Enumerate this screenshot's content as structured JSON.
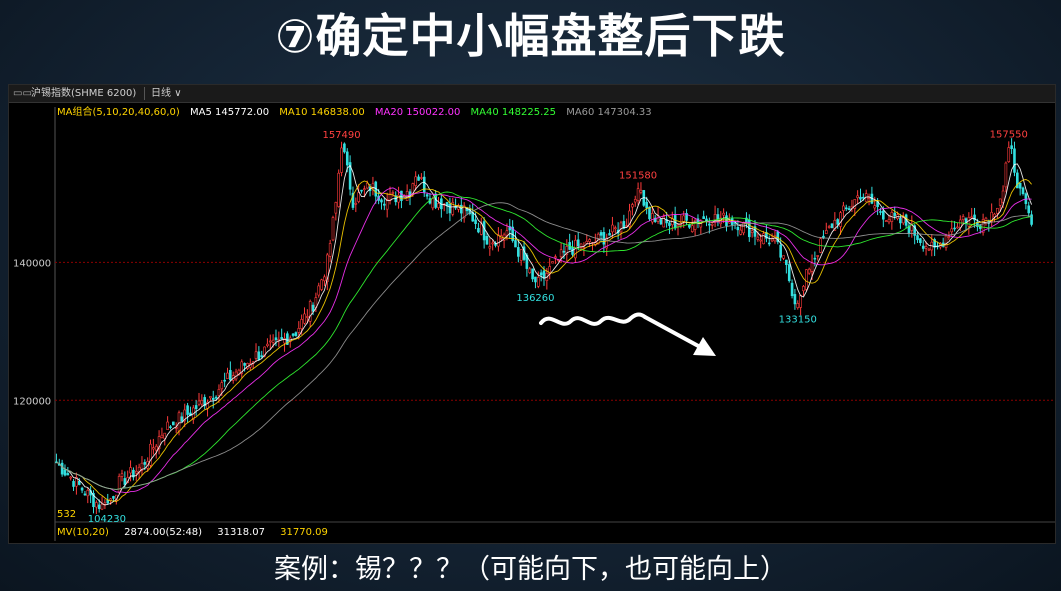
{
  "slide": {
    "title": "⑦确定中小幅盘整后下跌",
    "caption": "案例：锡？？？（可能向下，也可能向上）"
  },
  "window": {
    "icon": "window-icon",
    "symbol": "沪锡指数(SHME 6200)",
    "period": "日线",
    "period_arrow": "chevron-down-icon"
  },
  "ma_legend": {
    "combo": "MA组合(5,10,20,40,60,0)",
    "ma5": "MA5 145772.00",
    "ma10": "MA10 146838.00",
    "ma20": "MA20 150022.00",
    "ma40": "MA40 148225.25",
    "ma60": "MA60 147304.33"
  },
  "volume_legend": {
    "label": "MV(10,20)",
    "v1": "2874.00(52:48)",
    "v2": "31318.07",
    "v3": "31770.09"
  },
  "colors": {
    "up": "#ff3b3b",
    "down": "#33e0e0",
    "ma5": "#ffffff",
    "ma10": "#ffd400",
    "ma20": "#ff33ff",
    "ma40": "#33ff33",
    "ma60": "#9a9a9a",
    "combo": "#ffd400",
    "grid": "#8b0000",
    "high_label": "#ff4040",
    "low_label": "#33e0e0",
    "arrow": "#ffffff"
  },
  "chart_data": {
    "type": "candlestick",
    "y_ticks": [
      "140000",
      "120000"
    ],
    "y_tick_values": [
      140000,
      120000
    ],
    "ylim": [
      102500,
      160500
    ],
    "path": [
      [
        0,
        111000
      ],
      [
        7,
        108000
      ],
      [
        13,
        105500
      ],
      [
        17,
        104230
      ],
      [
        22,
        108000
      ],
      [
        30,
        110500
      ],
      [
        38,
        116000
      ],
      [
        46,
        118000
      ],
      [
        55,
        121000
      ],
      [
        64,
        124500
      ],
      [
        70,
        126500
      ],
      [
        77,
        128000
      ],
      [
        84,
        130000
      ],
      [
        90,
        134000
      ],
      [
        95,
        140000
      ],
      [
        98,
        148500
      ],
      [
        100,
        157490
      ],
      [
        104,
        149000
      ],
      [
        110,
        151000
      ],
      [
        116,
        149000
      ],
      [
        124,
        150500
      ],
      [
        126,
        153000
      ],
      [
        132,
        149000
      ],
      [
        140,
        148000
      ],
      [
        146,
        146500
      ],
      [
        152,
        143000
      ],
      [
        158,
        144500
      ],
      [
        163,
        141000
      ],
      [
        168,
        136260
      ],
      [
        174,
        139500
      ],
      [
        180,
        142000
      ],
      [
        186,
        142500
      ],
      [
        194,
        144000
      ],
      [
        200,
        146000
      ],
      [
        204,
        151580
      ],
      [
        208,
        147000
      ],
      [
        214,
        145500
      ],
      [
        222,
        146000
      ],
      [
        230,
        146500
      ],
      [
        238,
        146000
      ],
      [
        246,
        144000
      ],
      [
        252,
        143000
      ],
      [
        256,
        139000
      ],
      [
        260,
        133150
      ],
      [
        264,
        139500
      ],
      [
        268,
        142500
      ],
      [
        272,
        145500
      ],
      [
        278,
        148000
      ],
      [
        282,
        150000
      ],
      [
        286,
        148500
      ],
      [
        292,
        146500
      ],
      [
        298,
        145500
      ],
      [
        304,
        143000
      ],
      [
        308,
        141500
      ],
      [
        313,
        144500
      ],
      [
        318,
        146500
      ],
      [
        324,
        146000
      ],
      [
        328,
        147000
      ],
      [
        332,
        150500
      ],
      [
        334,
        157550
      ],
      [
        338,
        150000
      ],
      [
        342,
        145500
      ]
    ],
    "annotations": [
      {
        "text": "157490",
        "x": 100,
        "y": 157490,
        "kind": "high"
      },
      {
        "text": "151580",
        "x": 204,
        "y": 151580,
        "kind": "high"
      },
      {
        "text": "157550",
        "x": 334,
        "y": 157550,
        "kind": "high"
      },
      {
        "text": "136260",
        "x": 168,
        "y": 136260,
        "kind": "low"
      },
      {
        "text": "133150",
        "x": 260,
        "y": 133150,
        "kind": "low"
      },
      {
        "text": "104230",
        "x": 17,
        "y": 104230,
        "kind": "low"
      }
    ],
    "left_bottom_label": "532",
    "ma_periods": [
      5,
      10,
      20,
      40,
      60
    ]
  }
}
